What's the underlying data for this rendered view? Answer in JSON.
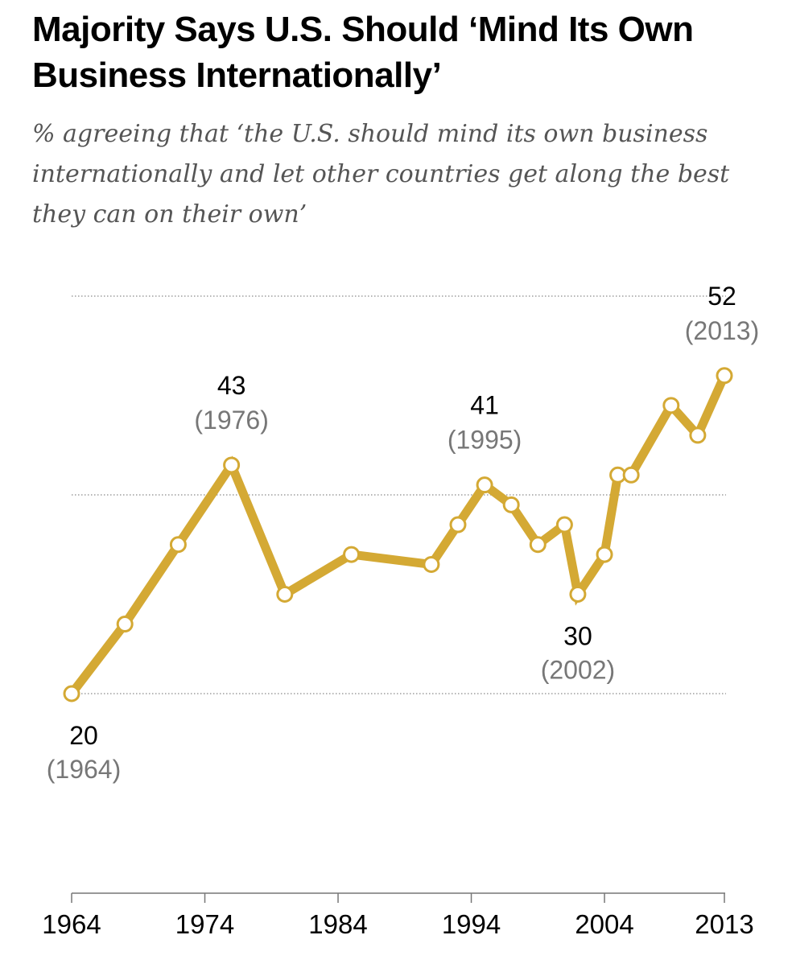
{
  "chart_data": {
    "type": "line",
    "title": "Majority Says U.S. Should ‘Mind Its Own Business Internationally’",
    "subtitle": "% agreeing that ‘the U.S. should mind its own business internationally and let other countries get along the best they can on their own’",
    "xlabel": "",
    "ylabel": "",
    "ylim": [
      20,
      60
    ],
    "xlim": [
      1964,
      2013
    ],
    "grid": true,
    "color": "#d4a934",
    "x_ticks": [
      "1964",
      "1974",
      "1984",
      "1994",
      "2004",
      "2013"
    ],
    "series": [
      {
        "name": "Mind its own business",
        "x": [
          1964,
          1968,
          1972,
          1976,
          1980,
          1985,
          1991,
          1993,
          1995,
          1997,
          1999,
          2001,
          2002,
          2004,
          2005,
          2006,
          2009,
          2011,
          2013
        ],
        "values": [
          20,
          27,
          35,
          43,
          30,
          34,
          33,
          37,
          41,
          39,
          35,
          37,
          30,
          34,
          42,
          42,
          49,
          46,
          52
        ]
      }
    ],
    "annotations": [
      {
        "x": 1964,
        "value": "20",
        "year": "(1964)",
        "position": "below"
      },
      {
        "x": 1976,
        "value": "43",
        "year": "(1976)",
        "position": "above"
      },
      {
        "x": 1995,
        "value": "41",
        "year": "(1995)",
        "position": "above"
      },
      {
        "x": 2002,
        "value": "30",
        "year": "(2002)",
        "position": "below"
      },
      {
        "x": 2013,
        "value": "52",
        "year": "(2013)",
        "position": "above"
      }
    ]
  }
}
